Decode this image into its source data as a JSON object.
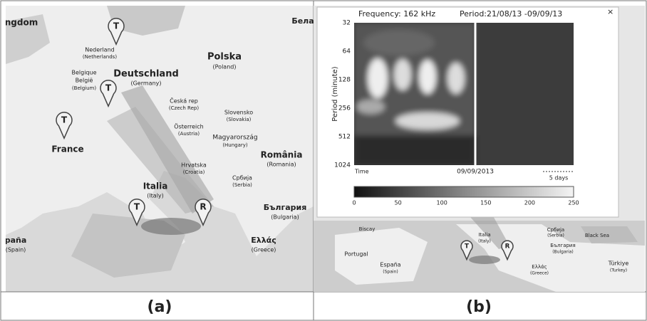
{
  "panels": [
    {
      "caption": "(a)",
      "markers": [
        "T",
        "T",
        "T",
        "T",
        "R"
      ],
      "labels": [
        "ngdom",
        "Nederland",
        "(Netherlands)",
        "Belgique",
        "België",
        "(Belgium)",
        "Deutschland",
        "(Germany)",
        "Polska",
        "(Poland)",
        "Бела",
        "Česká rep",
        "(Czech Rep)",
        "Slovensko",
        "(Slovakia)",
        "Österreich",
        "(Austria)",
        "Magyarország",
        "(Hungary)",
        "România",
        "(Romania)",
        "France",
        "Hrvatska",
        "(Croatia)",
        "Србија",
        "(Serbia)",
        "Italia",
        "(Italy)",
        "България",
        "(Bulgaria)",
        "Ελλάς",
        "(Greece)",
        "paña",
        "(Spain)"
      ]
    },
    {
      "caption": "(b)",
      "markers": [
        "T",
        "R"
      ],
      "labels": [
        "Biscay",
        "Portugal",
        "España",
        "(Spain)",
        "Italia",
        "(Italy)",
        "Србија",
        "(Serbia)",
        "България",
        "(Bulgaria)",
        "Ελλάς",
        "(Greece)",
        "Black Sea",
        "Türkiye",
        "(Turkey)"
      ],
      "popup": {
        "frequency": "Frequency: 162 kHz",
        "period": "Period:21/08/13 -09/09/13",
        "close": "×",
        "y_label": "Period (minute)",
        "y_ticks": [
          "32",
          "64",
          "128",
          "256",
          "512",
          "1024"
        ],
        "x_start": "Time",
        "x_mid": "09/09/2013",
        "scale": "5 days",
        "colorbar_ticks": [
          "0",
          "50",
          "100",
          "150",
          "200",
          "250"
        ]
      }
    }
  ]
}
